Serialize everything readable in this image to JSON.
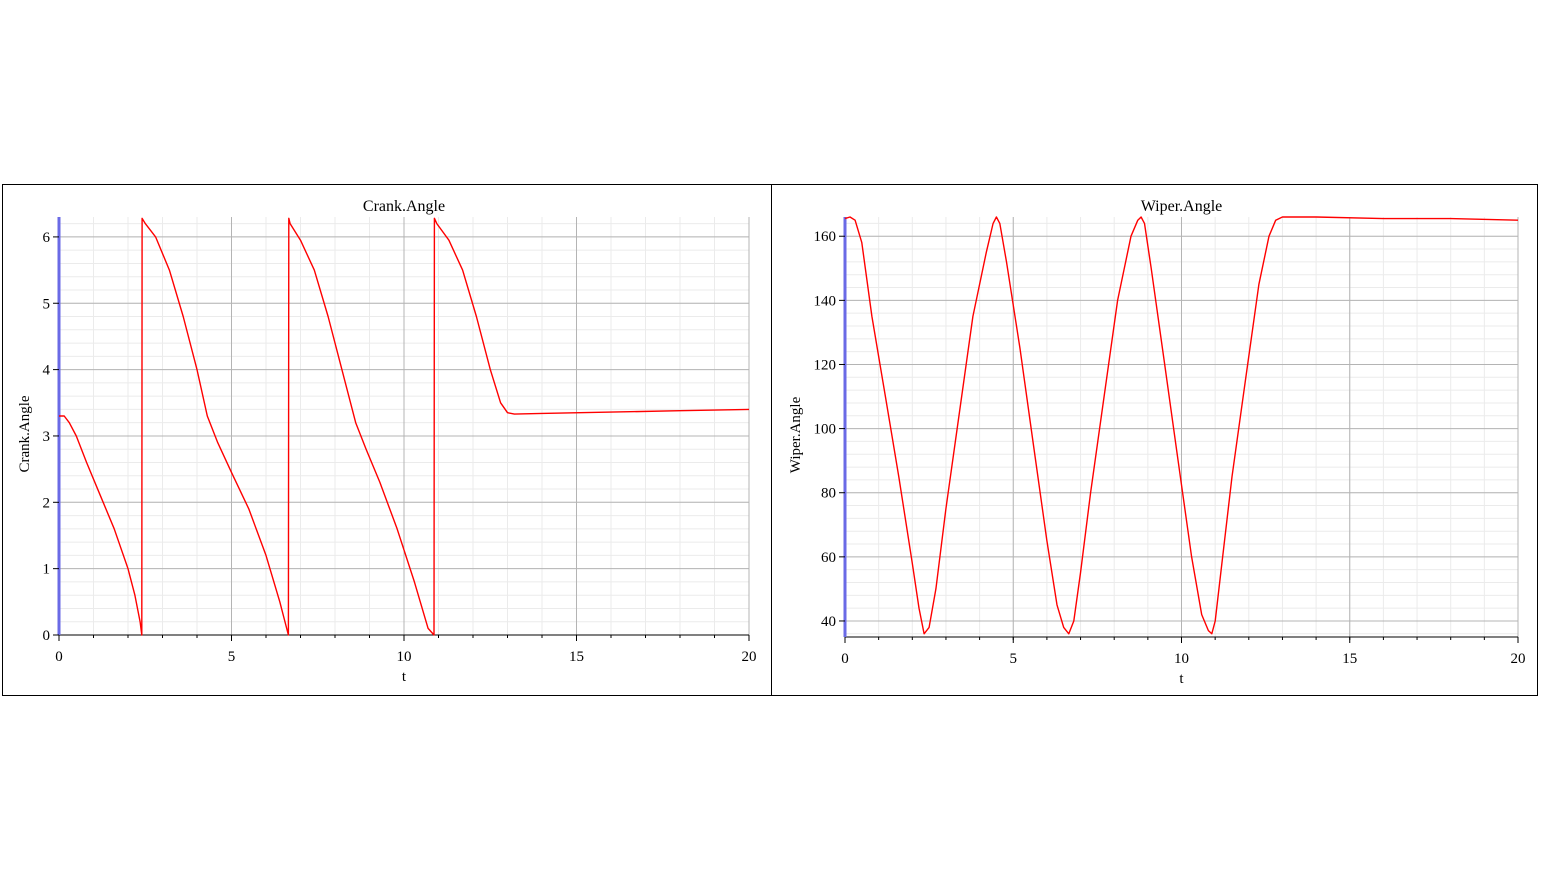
{
  "chart_data": [
    {
      "type": "line",
      "title": "Crank.Angle",
      "xlabel": "t",
      "ylabel": "Crank.Angle",
      "xlim": [
        0,
        20
      ],
      "ylim": [
        0,
        6.3
      ],
      "xticks": [
        0,
        5,
        10,
        15,
        20
      ],
      "yticks": [
        0,
        1,
        2,
        3,
        4,
        5,
        6
      ],
      "grid": true,
      "line_color": "#ff0000",
      "series": [
        {
          "x": [
            0,
            0.15,
            0.3,
            0.5,
            0.8,
            1.2,
            1.6,
            2.0,
            2.2,
            2.35,
            2.4,
            2.41,
            2.5,
            2.8,
            3.2,
            3.6,
            4.0,
            4.3,
            4.6,
            5.0,
            5.5,
            6.0,
            6.4,
            6.65,
            6.66,
            6.7,
            7.0,
            7.4,
            7.8,
            8.2,
            8.6,
            8.9,
            9.3,
            9.8,
            10.3,
            10.7,
            10.87,
            10.88,
            10.95,
            11.3,
            11.7,
            12.1,
            12.5,
            12.8,
            13.0,
            13.2,
            14.0,
            16.0,
            18.0,
            20.0
          ],
          "y": [
            3.3,
            3.3,
            3.2,
            3.0,
            2.6,
            2.1,
            1.6,
            1.0,
            0.6,
            0.2,
            0.0,
            6.28,
            6.2,
            6.0,
            5.5,
            4.8,
            4.0,
            3.3,
            2.9,
            2.45,
            1.9,
            1.2,
            0.5,
            0.0,
            6.28,
            6.2,
            5.95,
            5.5,
            4.8,
            4.0,
            3.2,
            2.8,
            2.3,
            1.6,
            0.8,
            0.1,
            0.0,
            6.28,
            6.2,
            5.95,
            5.5,
            4.8,
            4.0,
            3.5,
            3.35,
            3.33,
            3.34,
            3.36,
            3.38,
            3.4
          ]
        }
      ]
    },
    {
      "type": "line",
      "title": "Wiper.Angle",
      "xlabel": "t",
      "ylabel": "Wiper.Angle",
      "xlim": [
        0,
        20
      ],
      "ylim": [
        35,
        166
      ],
      "xticks": [
        0,
        5,
        10,
        15,
        20
      ],
      "yticks": [
        40,
        60,
        80,
        100,
        120,
        140,
        160
      ],
      "grid": true,
      "line_color": "#ff0000",
      "series": [
        {
          "x": [
            0,
            0.15,
            0.3,
            0.5,
            0.8,
            1.2,
            1.6,
            2.0,
            2.2,
            2.35,
            2.5,
            2.7,
            3.0,
            3.4,
            3.8,
            4.2,
            4.4,
            4.5,
            4.6,
            4.8,
            5.2,
            5.6,
            6.0,
            6.3,
            6.5,
            6.65,
            6.8,
            7.0,
            7.3,
            7.7,
            8.1,
            8.5,
            8.7,
            8.8,
            8.9,
            9.1,
            9.5,
            9.9,
            10.3,
            10.6,
            10.8,
            10.9,
            11.0,
            11.2,
            11.5,
            11.9,
            12.3,
            12.6,
            12.8,
            13.0,
            14.0,
            16.0,
            18.0,
            20.0
          ],
          "y": [
            165.5,
            166,
            165,
            158,
            135,
            110,
            85,
            58,
            44,
            36,
            38,
            50,
            75,
            105,
            135,
            155,
            164,
            166,
            164,
            152,
            125,
            95,
            65,
            45,
            38,
            36,
            40,
            55,
            80,
            110,
            140,
            160,
            165,
            166,
            164,
            150,
            120,
            90,
            60,
            42,
            37,
            36,
            40,
            58,
            85,
            115,
            145,
            160,
            165,
            166,
            166,
            165.5,
            165.5,
            165
          ]
        }
      ]
    }
  ]
}
